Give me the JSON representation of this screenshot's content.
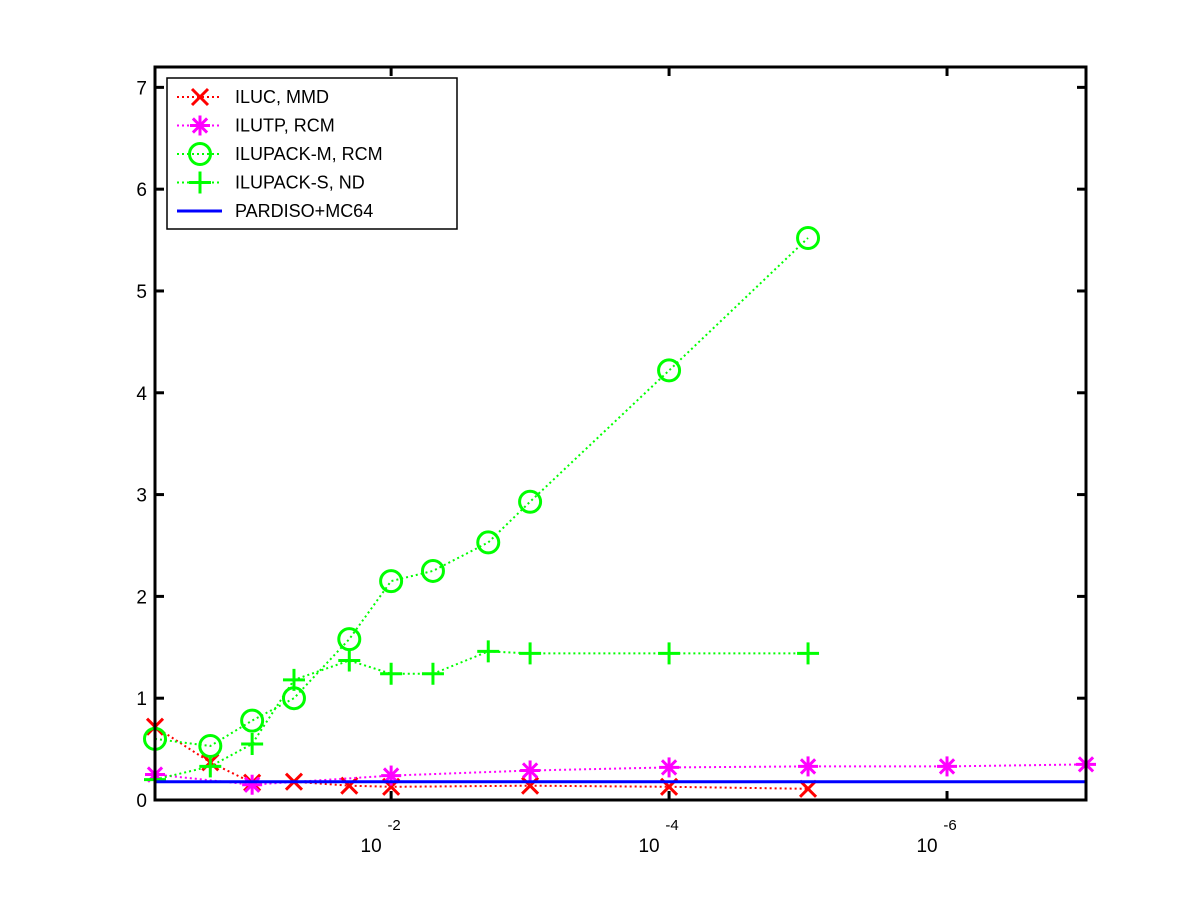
{
  "chart_data": {
    "type": "line",
    "title": "",
    "xlabel": "",
    "ylabel": "",
    "x_scale": "log-reversed",
    "x_tick_labels": [
      {
        "base": "10",
        "exponent": "-2",
        "value": 0.01
      },
      {
        "base": "10",
        "exponent": "-4",
        "value": 0.0001
      },
      {
        "base": "10",
        "exponent": "-6",
        "value": 1e-06
      }
    ],
    "xlim": [
      0.5,
      1e-07
    ],
    "ylim": [
      0,
      7.2
    ],
    "y_ticks": [
      0,
      1,
      2,
      3,
      4,
      5,
      6,
      7
    ],
    "y_tick_labels": [
      "0",
      "1",
      "2",
      "3",
      "4",
      "5",
      "6",
      "7"
    ],
    "grid": false,
    "legend_position": "top-left",
    "series": [
      {
        "name": "ILUC, MMD",
        "color": "#ff0000",
        "marker": "x",
        "line_style": "dotted",
        "x": [
          0.5,
          0.2,
          0.1,
          0.05,
          0.02,
          0.01,
          0.001,
          0.0001,
          1e-05
        ],
        "y": [
          0.72,
          0.37,
          0.17,
          0.18,
          0.14,
          0.13,
          0.14,
          0.13,
          0.11
        ]
      },
      {
        "name": "ILUTP, RCM",
        "color": "#ff00ff",
        "marker": "asterisk",
        "line_style": "dotted",
        "x": [
          0.5,
          0.1,
          0.01,
          0.001,
          0.0001,
          1e-05,
          1e-06,
          1e-07
        ],
        "y": [
          0.25,
          0.15,
          0.24,
          0.29,
          0.32,
          0.33,
          0.33,
          0.35
        ]
      },
      {
        "name": "ILUPACK-M, RCM",
        "color": "#00ff00",
        "marker": "circle",
        "line_style": "dotted",
        "x": [
          0.5,
          0.2,
          0.1,
          0.05,
          0.02,
          0.01,
          0.005,
          0.002,
          0.001,
          0.0001,
          1e-05
        ],
        "y": [
          0.6,
          0.53,
          0.78,
          1.0,
          1.58,
          2.15,
          2.25,
          2.53,
          2.93,
          4.22,
          5.52
        ]
      },
      {
        "name": "ILUPACK-S, ND",
        "color": "#00ff00",
        "marker": "plus",
        "line_style": "dotted",
        "x": [
          0.5,
          0.2,
          0.1,
          0.05,
          0.02,
          0.01,
          0.005,
          0.002,
          0.001,
          0.0001,
          1e-05
        ],
        "y": [
          0.2,
          0.33,
          0.55,
          1.18,
          1.37,
          1.24,
          1.24,
          1.46,
          1.44,
          1.44,
          1.44
        ]
      },
      {
        "name": "PARDISO+MC64",
        "color": "#0000ff",
        "marker": "none",
        "line_style": "solid",
        "x": [
          0.5,
          1e-07
        ],
        "y": [
          0.18,
          0.18
        ]
      }
    ]
  }
}
